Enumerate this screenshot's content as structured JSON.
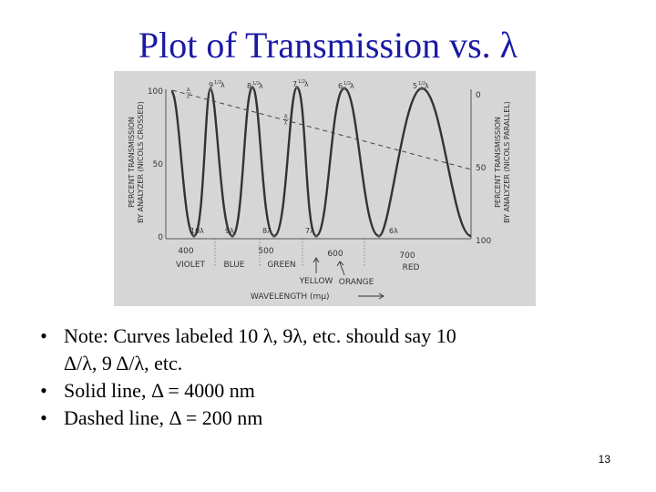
{
  "slide": {
    "title": "Plot of Transmission vs. λ",
    "page_number": "13"
  },
  "bullets": [
    {
      "marker": "•",
      "line1": "Note: Curves labeled 10 λ, 9λ, etc. should say 10",
      "line2": "Δ/λ, 9 Δ/λ, etc."
    },
    {
      "marker": "•",
      "line1": "Solid line, Δ = 4000 nm"
    },
    {
      "marker": "•",
      "line1": "Dashed line, Δ = 200 nm"
    }
  ],
  "figure": {
    "left_axis_title_1": "PERCENT TRANSMISSION",
    "left_axis_title_2": "BY ANALYZER (NICOLS CROSSED)",
    "right_axis_title_1": "PERCENT TRANSMISSION",
    "right_axis_title_2": "BY ANALYZER (NICOLS PARALLEL)",
    "left_ticks": [
      "100",
      "50",
      "0"
    ],
    "right_ticks": [
      "0",
      "50",
      "100"
    ],
    "x_ticks": [
      "400",
      "500",
      "600",
      "700"
    ],
    "color_bands": [
      "VIOLET",
      "BLUE",
      "GREEN",
      "RED"
    ],
    "arrow_labels": [
      "YELLOW",
      "ORANGE"
    ],
    "x_axis_title": "WAVELENGTH (mμ)",
    "peak_labels": [
      {
        "main": "9",
        "frac": "1/2",
        "suffix": "λ"
      },
      {
        "main": "8",
        "frac": "1/2",
        "suffix": "λ"
      },
      {
        "main": "7",
        "frac": "1/2",
        "suffix": "λ"
      },
      {
        "main": "6",
        "frac": "1/2",
        "suffix": "λ"
      },
      {
        "main": "5",
        "frac": "1/2",
        "suffix": "λ"
      }
    ],
    "trough_labels": [
      "10λ",
      "9λ",
      "8λ",
      "7λ",
      "6λ"
    ],
    "dashed_labels": [
      {
        "top": "Δ",
        "bottom": "λ"
      },
      {
        "top": "Δ",
        "bottom": "λ"
      }
    ]
  }
}
